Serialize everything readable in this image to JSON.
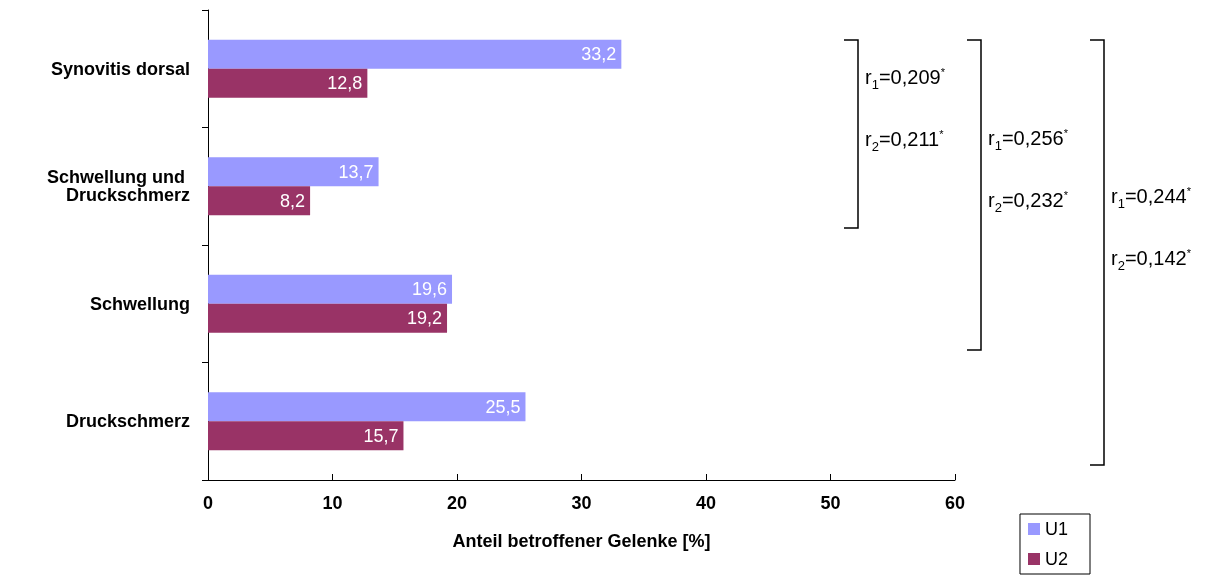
{
  "chart_data": {
    "type": "bar",
    "orientation": "horizontal",
    "categories": [
      "Synovitis dorsal",
      "Schwellung und Druckschmerz",
      "Schwellung",
      "Druckschmerz"
    ],
    "series": [
      {
        "name": "U1",
        "color": "#9999ff",
        "values": [
          33.2,
          13.7,
          19.6,
          25.5
        ],
        "value_labels": [
          "33,2",
          "13,7",
          "19,6",
          "25,5"
        ]
      },
      {
        "name": "U2",
        "color": "#993366",
        "values": [
          12.8,
          8.2,
          19.2,
          15.7
        ],
        "value_labels": [
          "12,8",
          "8,2",
          "19,2",
          "15,7"
        ]
      }
    ],
    "xlabel": "Anteil betroffener Gelenke [%]",
    "xlim": [
      0,
      60
    ],
    "xticks": [
      0,
      10,
      20,
      30,
      40,
      50,
      60
    ],
    "grid": false,
    "legend": "bottom right",
    "annotations": [
      "r$_{1}$=0,209$^{*}$",
      "r$_{2}$=0,211$^{*}$",
      "r$_{1}$=0,256$^{*}$",
      "r$_{2}$=0,232$^{*}$",
      "r$_{1}$=0,244$^{*}$",
      "r$_{2}$=0,142$^{*}$"
    ]
  }
}
